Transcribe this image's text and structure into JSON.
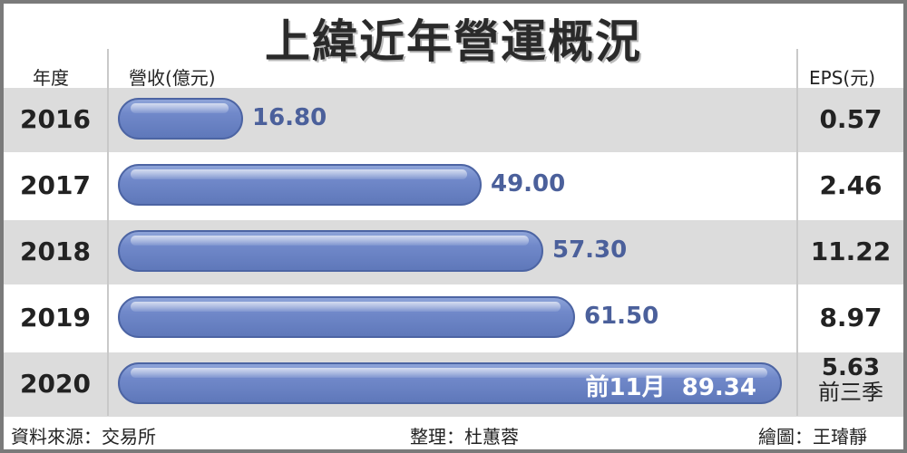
{
  "chart_data": {
    "type": "bar",
    "orientation": "horizontal",
    "title": "上緯近年營運概況",
    "year_header": "年度",
    "revenue_header": "營收(億元)",
    "eps_header": "EPS(元)",
    "categories": [
      "2016",
      "2017",
      "2018",
      "2019",
      "2020"
    ],
    "values": [
      16.8,
      49.0,
      57.3,
      61.5,
      89.34
    ],
    "value_labels": [
      "16.80",
      "49.00",
      "57.30",
      "61.50",
      "89.34"
    ],
    "value_prefix_2020": "前11月",
    "eps": [
      "0.57",
      "2.46",
      "11.22",
      "8.97",
      "5.63"
    ],
    "eps_note_2020": "前三季",
    "bar_color": "#6b86c5"
  },
  "footer": {
    "source": "資料來源：交易所",
    "editor": "整理：杜蕙蓉",
    "artist": "繪圖：王璿靜"
  }
}
